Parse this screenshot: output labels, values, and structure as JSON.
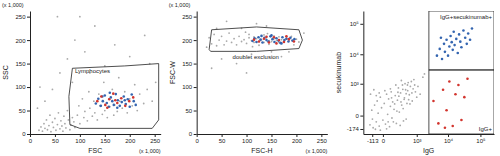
{
  "chart_data": [
    {
      "type": "scatter",
      "x_label": "FSC",
      "y_label": "SSC",
      "x_scale_note": "(x 1,000)",
      "y_scale_note": "(x 1,000)",
      "xlim": [
        0,
        262
      ],
      "ylim": [
        0,
        262
      ],
      "xticks": [
        0,
        50,
        100,
        150,
        200,
        250
      ],
      "yticks": [
        0,
        50,
        100,
        150,
        200,
        250
      ],
      "gates": [
        {
          "label": "Lymphocytes",
          "x": [
            80,
            100,
            245,
            258,
            258,
            190,
            85,
            78
          ],
          "y": [
            20,
            12,
            12,
            30,
            150,
            145,
            140,
            80
          ]
        }
      ],
      "series": [
        {
          "color": "#a9a9a9",
          "x": [
            18,
            22,
            25,
            28,
            30,
            33,
            35,
            38,
            40,
            42,
            45,
            47,
            50,
            52,
            55,
            57,
            60,
            62,
            64,
            66,
            68,
            70,
            72,
            75,
            77,
            80,
            82,
            85,
            88,
            90,
            95,
            98,
            100,
            105,
            108,
            110,
            115,
            118,
            120,
            125,
            128,
            130,
            135,
            138,
            140,
            145,
            148,
            150,
            155,
            158,
            160,
            165,
            168,
            170,
            175,
            178,
            180,
            185,
            190,
            195,
            200,
            205,
            210,
            215,
            220,
            228,
            235,
            245,
            252,
            30,
            45,
            60,
            75,
            90,
            110,
            130,
            150,
            170,
            200,
            230,
            55,
            240,
            120,
            85,
            15,
            20,
            100
          ],
          "values": [
            8,
            15,
            6,
            22,
            12,
            30,
            9,
            18,
            40,
            5,
            25,
            14,
            33,
            8,
            20,
            45,
            11,
            28,
            17,
            6,
            38,
            22,
            13,
            50,
            30,
            9,
            19,
            35,
            26,
            14,
            40,
            60,
            22,
            75,
            35,
            48,
            28,
            90,
            55,
            38,
            70,
            45,
            30,
            85,
            60,
            42,
            110,
            50,
            35,
            75,
            58,
            95,
            40,
            62,
            48,
            120,
            70,
            55,
            90,
            45,
            75,
            60,
            105,
            50,
            85,
            65,
            95,
            70,
            110,
            70,
            95,
            130,
            160,
            200,
            175,
            230,
            145,
            190,
            165,
            210,
            250,
            150,
            130,
            110,
            55,
            100,
            250
          ]
        },
        {
          "color": "#3465b0",
          "x": [
            132,
            137,
            142,
            146,
            150,
            154,
            158,
            162,
            165,
            168,
            172,
            176,
            180,
            184,
            188,
            192,
            196,
            200,
            204,
            208,
            212,
            160,
            175,
            145,
            190
          ],
          "values": [
            65,
            75,
            60,
            70,
            82,
            66,
            58,
            78,
            70,
            62,
            85,
            72,
            60,
            68,
            80,
            64,
            74,
            58,
            84,
            70,
            62,
            88,
            56,
            80,
            72
          ]
        },
        {
          "color": "#d2352e",
          "x": [
            135,
            143,
            151,
            159,
            167,
            175,
            183,
            191,
            199,
            207,
            155,
            171
          ],
          "values": [
            70,
            80,
            62,
            74,
            86,
            66,
            76,
            60,
            70,
            78,
            56,
            72
          ]
        }
      ]
    },
    {
      "type": "scatter",
      "x_label": "FSC-H",
      "y_label": "FSC-W",
      "x_scale_note": "(x 1,000)",
      "y_scale_note": "(x 1,000)",
      "xlim": [
        0,
        262
      ],
      "ylim": [
        0,
        262
      ],
      "xticks": [
        0,
        50,
        100,
        150,
        200,
        250
      ],
      "yticks": [
        0,
        50,
        100,
        150,
        200,
        250
      ],
      "gates": [
        {
          "label": "doublet exclusion",
          "x": [
            25,
            30,
            120,
            205,
            212,
            205,
            120,
            28
          ],
          "y": [
            180,
            222,
            228,
            222,
            200,
            182,
            176,
            176
          ]
        }
      ],
      "series": [
        {
          "color": "#a9a9a9",
          "x": [
            20,
            25,
            30,
            35,
            40,
            45,
            50,
            55,
            60,
            65,
            70,
            75,
            80,
            85,
            90,
            95,
            100,
            105,
            110,
            115,
            120,
            125,
            130,
            135,
            140,
            145,
            150,
            155,
            160,
            165,
            170,
            175,
            180,
            185,
            190,
            105,
            115,
            125,
            135,
            145,
            155,
            165,
            112,
            142,
            98,
            200,
            205,
            195,
            50,
            80,
            110,
            140,
            170,
            60,
            120,
            30,
            90,
            150,
            40,
            185,
            100,
            215
          ],
          "values": [
            185,
            205,
            192,
            212,
            188,
            200,
            208,
            190,
            198,
            215,
            195,
            203,
            190,
            208,
            197,
            201,
            193,
            205,
            199,
            195,
            203,
            197,
            201,
            195,
            205,
            199,
            197,
            203,
            199,
            195,
            201,
            197,
            204,
            199,
            208,
            212,
            207,
            189,
            211,
            191,
            209,
            207,
            186,
            214,
            217,
            202,
            196,
            190,
            160,
            150,
            170,
            230,
            165,
            240,
            235,
            140,
            225,
            175,
            225,
            175,
            130,
            215
          ]
        },
        {
          "color": "#3465b0",
          "x": [
            112,
            116,
            120,
            124,
            128,
            132,
            136,
            140,
            144,
            148,
            152,
            156,
            160,
            164,
            168,
            172,
            176,
            180,
            184,
            188,
            192,
            196,
            130,
            170,
            150
          ],
          "values": [
            198,
            204,
            196,
            206,
            201,
            195,
            205,
            200,
            197,
            208,
            202,
            196,
            204,
            199,
            194,
            206,
            200,
            203,
            197,
            205,
            199,
            202,
            209,
            193,
            210
          ]
        },
        {
          "color": "#d2352e",
          "x": [
            115,
            125,
            135,
            145,
            155,
            165,
            175,
            185,
            195,
            140,
            160,
            180
          ],
          "values": [
            201,
            197,
            203,
            195,
            206,
            200,
            196,
            202,
            197,
            207,
            193,
            208
          ]
        }
      ]
    },
    {
      "type": "scatter",
      "log": true,
      "x_label": "IgG",
      "y_label": "secukinumab",
      "xlim": [
        -300,
        262144
      ],
      "ylim": [
        -300,
        262144
      ],
      "xticks": [
        -113,
        0,
        {
          "value": 1000,
          "label": "10³"
        },
        {
          "value": 10000,
          "label": "10⁴"
        },
        {
          "value": 100000,
          "label": "10⁵"
        }
      ],
      "yticks": [
        -174,
        0,
        {
          "value": 1000,
          "label": "10³"
        },
        {
          "value": 10000,
          "label": "10⁴"
        },
        {
          "value": 100000,
          "label": "10⁵"
        }
      ],
      "gates": [
        {
          "label": "IgG+secukinumab+",
          "x": [
            2500,
            262144,
            262144,
            2500
          ],
          "y": [
            3000,
            3000,
            262144,
            262144
          ]
        },
        {
          "label": "IgG+",
          "x": [
            2500,
            262144,
            262144,
            2500
          ],
          "y": [
            -300,
            -300,
            3000,
            3000
          ]
        }
      ],
      "series": [
        {
          "color": "#a9a9a9",
          "x": [
            -150,
            -120,
            -100,
            -80,
            -60,
            -50,
            -40,
            -30,
            -20,
            -10,
            0,
            10,
            20,
            30,
            40,
            50,
            60,
            70,
            80,
            90,
            100,
            120,
            140,
            160,
            180,
            200,
            220,
            250,
            280,
            300,
            330,
            360,
            400,
            450,
            500,
            550,
            600,
            700,
            800,
            900,
            1000,
            -140,
            -90,
            -60,
            -20,
            30,
            70,
            110,
            150,
            190,
            240,
            270,
            320,
            380,
            420,
            480,
            520,
            650,
            750,
            -110,
            -70,
            -30,
            15,
            45,
            85,
            130,
            170,
            210,
            260,
            310,
            350,
            420,
            470,
            580,
            680,
            850,
            1100,
            1300,
            1600,
            1800
          ],
          "values": [
            -100,
            50,
            -150,
            120,
            -60,
            200,
            20,
            -120,
            300,
            80,
            -40,
            150,
            -90,
            400,
            10,
            250,
            -130,
            100,
            500,
            -20,
            180,
            60,
            350,
            -80,
            220,
            700,
            30,
            450,
            120,
            900,
            -50,
            280,
            600,
            150,
            1100,
            380,
            800,
            200,
            1400,
            500,
            300,
            400,
            600,
            350,
            -200,
            -170,
            650,
            -60,
            900,
            480,
            -110,
            1300,
            70,
            1000,
            -30,
            550,
            230,
            1200,
            650,
            -30,
            -180,
            450,
            550,
            -60,
            280,
            140,
            40,
            330,
            180,
            620,
            240,
            420,
            900,
            140,
            450,
            900,
            800,
            400,
            1700,
            2200
          ]
        },
        {
          "color": "#3465b0",
          "x": [
            4500,
            5500,
            6500,
            7500,
            8000,
            9000,
            10000,
            11000,
            12000,
            13000,
            14000,
            15000,
            16000,
            18000,
            20000,
            22000,
            24000,
            26000,
            30000,
            34000,
            38000,
            42000,
            48000,
            55000,
            6000
          ],
          "values": [
            9000,
            15000,
            7000,
            22000,
            12000,
            30000,
            9000,
            18000,
            40000,
            25000,
            14000,
            55000,
            20000,
            32000,
            11000,
            45000,
            26000,
            17000,
            60000,
            35000,
            22000,
            48000,
            30000,
            70000,
            35000
          ]
        },
        {
          "color": "#d2352e",
          "x": [
            3500,
            5000,
            7000,
            9000,
            11000,
            14000,
            17000,
            21000,
            26000,
            32000,
            40000,
            8000
          ],
          "values": [
            200,
            -80,
            600,
            50,
            1200,
            -120,
            400,
            900,
            -40,
            300,
            1500,
            -150
          ]
        }
      ]
    }
  ]
}
